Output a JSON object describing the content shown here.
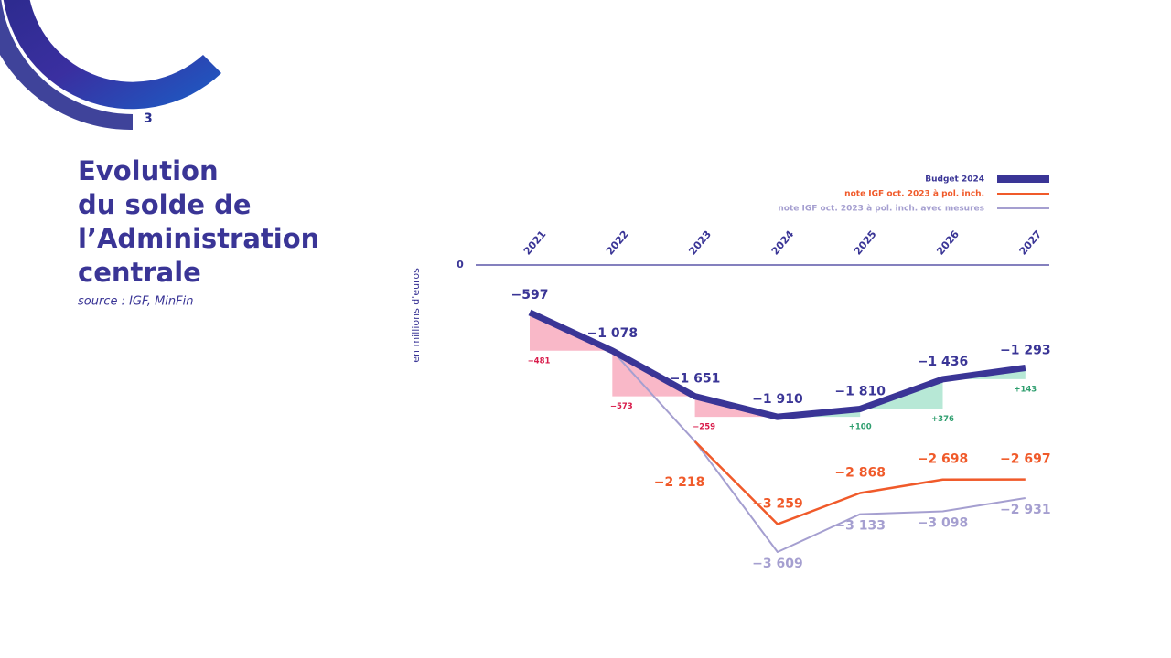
{
  "slide_number": "3",
  "title_lines": [
    "Evolution",
    "du solde de",
    "l’Administration",
    "centrale"
  ],
  "source": "source : IGF, MinFin",
  "chart_data": {
    "type": "line",
    "y_label": "en millions d'euros",
    "categories": [
      "2021",
      "2022",
      "2023",
      "2024",
      "2025",
      "2026",
      "2027"
    ],
    "ylim": [
      -4000,
      0
    ],
    "yticks": [
      0
    ],
    "series": [
      {
        "name": "Budget 2024",
        "color": "#3a3596",
        "values": [
          -597,
          -1078,
          -1651,
          -1910,
          -1810,
          -1436,
          -1293
        ],
        "value_labels": [
          "−597",
          "−1 078",
          "−1 651",
          "−1 910",
          "−1 810",
          "−1 436",
          "−1 293"
        ]
      },
      {
        "name": "note IGF oct. 2023 à pol. inch.",
        "color": "#f05a2a",
        "values": [
          null,
          null,
          -2218,
          -3259,
          -2868,
          -2698,
          -2697
        ],
        "value_labels": [
          null,
          null,
          "−2 218",
          "−3 259",
          "−2 868",
          "−2 698",
          "−2 697"
        ]
      },
      {
        "name": "note IGF oct. 2023 à pol. inch. avec mesures",
        "color": "#a59fd0",
        "values": [
          null,
          -1078,
          -2218,
          -3609,
          -3133,
          -3098,
          -2931
        ],
        "value_labels": [
          null,
          null,
          null,
          "−3 609",
          "−3 133",
          "−3 098",
          "−2 931"
        ]
      }
    ],
    "changes": {
      "values": [
        -481,
        -573,
        -259,
        100,
        376,
        143
      ],
      "value_labels": [
        "−481",
        "−573",
        "−259",
        "+100",
        "+376",
        "+143"
      ],
      "negative_color": "#f9b8c8",
      "positive_color": "#b7e8d6",
      "negative_label_color": "#d81b4a",
      "positive_label_color": "#2e9e6e"
    }
  }
}
